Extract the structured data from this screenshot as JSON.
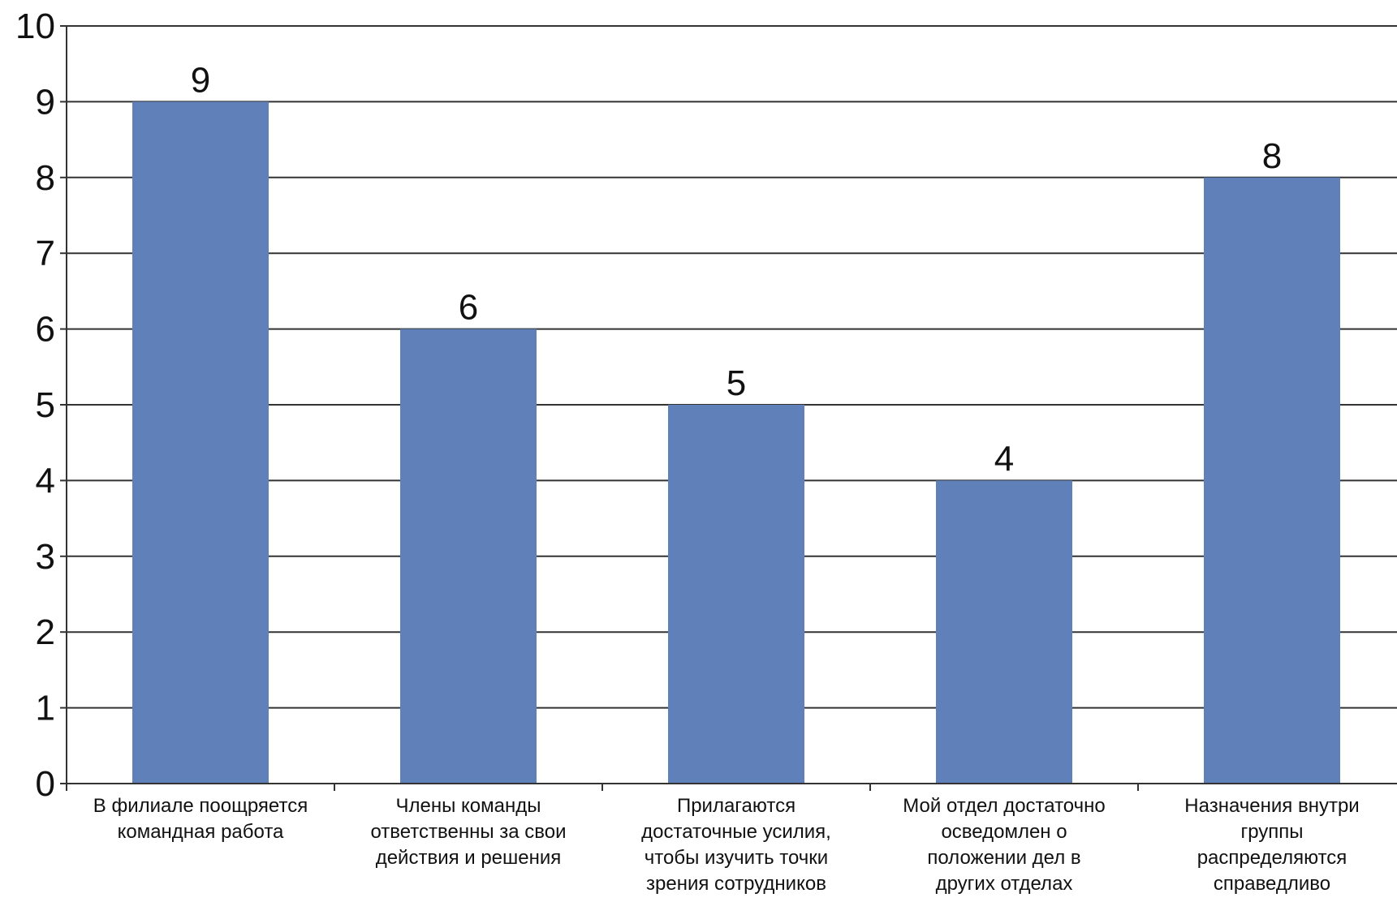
{
  "chart_data": {
    "type": "bar",
    "title": "",
    "xlabel": "",
    "ylabel": "",
    "ylim": [
      0,
      10
    ],
    "yticks": [
      0,
      1,
      2,
      3,
      4,
      5,
      6,
      7,
      8,
      9,
      10
    ],
    "grid": true,
    "data_labels": true,
    "bar_color": "#5f80b8",
    "categories": [
      [
        "В филиале поощряется",
        "командная работа"
      ],
      [
        "Члены команды",
        "ответственны за свои",
        "действия и решения"
      ],
      [
        "Прилагаются",
        "достаточные усилия,",
        "чтобы изучить точки",
        "зрения сотрудников"
      ],
      [
        "Мой отдел достаточно",
        "осведомлен о",
        "положении дел в",
        "других отделах"
      ],
      [
        "Назначения внутри",
        "группы",
        "распределяются",
        "справедливо"
      ]
    ],
    "values": [
      9,
      6,
      5,
      4,
      8
    ]
  }
}
